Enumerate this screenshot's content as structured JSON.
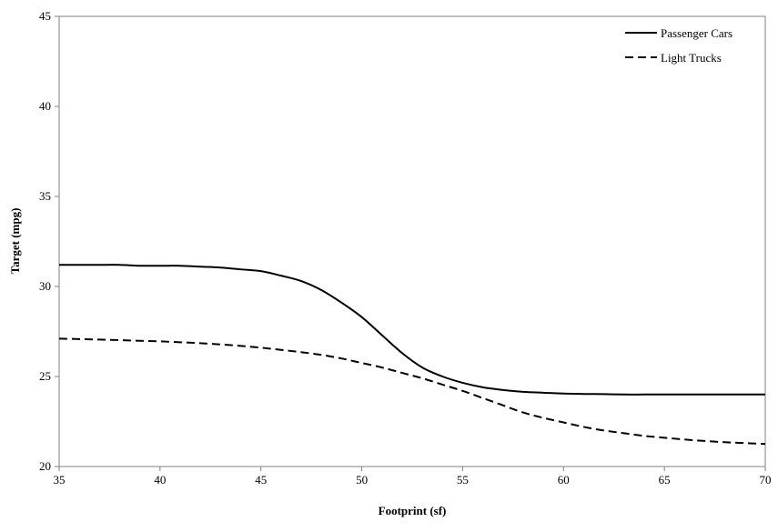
{
  "chart_data": {
    "type": "line",
    "title": "",
    "xlabel": "Footprint (sf)",
    "ylabel": "Target (mpg)",
    "xlim": [
      35,
      70
    ],
    "ylim": [
      20,
      45
    ],
    "x_ticks": [
      35,
      40,
      45,
      50,
      55,
      60,
      65,
      70
    ],
    "y_ticks": [
      20,
      25,
      30,
      35,
      40,
      45
    ],
    "x_tick_labels": [
      "35",
      "40",
      "45",
      "50",
      "55",
      "60",
      "65",
      "70"
    ],
    "y_tick_labels": [
      "20",
      "25",
      "30",
      "35",
      "40",
      "45"
    ],
    "grid": false,
    "legend_position": "top-right",
    "series": [
      {
        "name": "Passenger Cars",
        "style": "solid",
        "color": "#000000",
        "x": [
          35,
          36,
          37,
          38,
          39,
          40,
          41,
          42,
          43,
          44,
          45,
          46,
          47,
          48,
          49,
          50,
          51,
          52,
          53,
          54,
          55,
          56,
          57,
          58,
          59,
          60,
          61,
          62,
          63,
          64,
          65,
          66,
          67,
          68,
          69,
          70
        ],
        "y": [
          31.2,
          31.2,
          31.2,
          31.2,
          31.15,
          31.15,
          31.15,
          31.1,
          31.05,
          30.95,
          30.85,
          30.6,
          30.3,
          29.8,
          29.1,
          28.3,
          27.3,
          26.3,
          25.5,
          25.0,
          24.65,
          24.4,
          24.25,
          24.15,
          24.1,
          24.05,
          24.03,
          24.02,
          24.0,
          24.0,
          24.0,
          24.0,
          24.0,
          24.0,
          24.0,
          24.0
        ]
      },
      {
        "name": "Light Trucks",
        "style": "dashed",
        "color": "#000000",
        "x": [
          35,
          36,
          37,
          38,
          39,
          40,
          41,
          42,
          43,
          44,
          45,
          46,
          47,
          48,
          49,
          50,
          51,
          52,
          53,
          54,
          55,
          56,
          57,
          58,
          59,
          60,
          61,
          62,
          63,
          64,
          65,
          66,
          67,
          68,
          69,
          70
        ],
        "y": [
          27.1,
          27.08,
          27.05,
          27.02,
          26.98,
          26.95,
          26.9,
          26.85,
          26.78,
          26.7,
          26.6,
          26.48,
          26.35,
          26.2,
          26.0,
          25.75,
          25.5,
          25.2,
          24.9,
          24.55,
          24.2,
          23.8,
          23.4,
          23.0,
          22.7,
          22.45,
          22.2,
          22.0,
          21.85,
          21.7,
          21.6,
          21.5,
          21.42,
          21.35,
          21.3,
          21.25
        ]
      }
    ]
  }
}
